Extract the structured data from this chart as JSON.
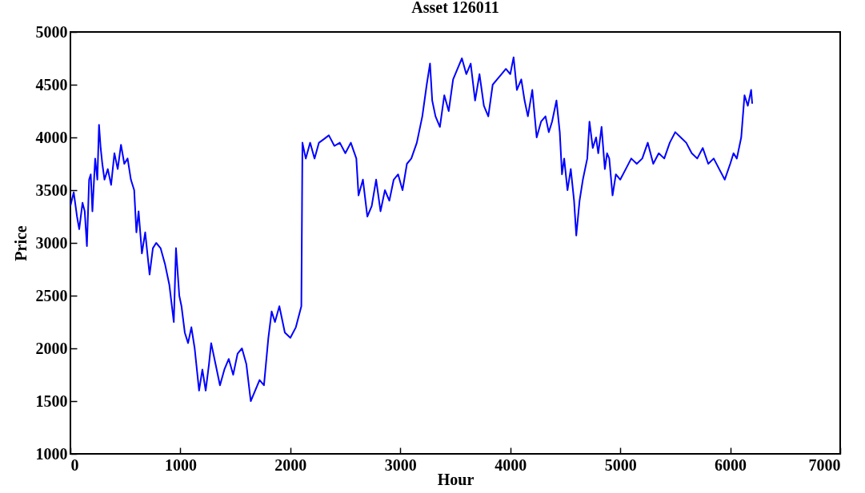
{
  "chart_data": {
    "type": "line",
    "title": "Asset 126011",
    "xlabel": "Hour",
    "ylabel": "Price",
    "xlim": [
      0,
      7000
    ],
    "xticks": [
      0,
      1000,
      2000,
      3000,
      4000,
      5000,
      6000,
      7000
    ],
    "ylim": [
      1000,
      5000
    ],
    "yticks": [
      1000,
      1500,
      2000,
      2500,
      3000,
      3500,
      4000,
      4500,
      5000
    ],
    "grid": false,
    "legend": false,
    "marker": "none",
    "line_style": "solid",
    "x": [
      0,
      30,
      60,
      80,
      110,
      130,
      150,
      170,
      185,
      200,
      225,
      245,
      260,
      275,
      290,
      310,
      340,
      370,
      400,
      430,
      460,
      490,
      520,
      550,
      580,
      600,
      620,
      650,
      680,
      720,
      750,
      780,
      820,
      860,
      900,
      940,
      960,
      990,
      1010,
      1040,
      1070,
      1100,
      1130,
      1170,
      1200,
      1230,
      1260,
      1280,
      1320,
      1360,
      1400,
      1440,
      1480,
      1520,
      1560,
      1600,
      1640,
      1680,
      1720,
      1760,
      1800,
      1830,
      1860,
      1900,
      1950,
      2000,
      2050,
      2100,
      2110,
      2140,
      2180,
      2220,
      2260,
      2300,
      2350,
      2400,
      2450,
      2500,
      2550,
      2600,
      2620,
      2660,
      2700,
      2740,
      2780,
      2820,
      2860,
      2900,
      2940,
      2980,
      3020,
      3060,
      3100,
      3150,
      3200,
      3240,
      3270,
      3290,
      3320,
      3360,
      3400,
      3440,
      3480,
      3520,
      3560,
      3600,
      3640,
      3680,
      3720,
      3760,
      3800,
      3840,
      3880,
      3920,
      3960,
      4000,
      4030,
      4060,
      4100,
      4130,
      4160,
      4200,
      4240,
      4280,
      4320,
      4350,
      4380,
      4420,
      4450,
      4470,
      4490,
      4520,
      4550,
      4580,
      4600,
      4630,
      4660,
      4700,
      4720,
      4750,
      4780,
      4800,
      4830,
      4860,
      4880,
      4900,
      4930,
      4960,
      5000,
      5050,
      5100,
      5150,
      5200,
      5250,
      5300,
      5350,
      5400,
      5450,
      5500,
      5550,
      5600,
      5650,
      5700,
      5750,
      5800,
      5850,
      5900,
      5950,
      6000,
      6030,
      6060,
      6100,
      6130,
      6160,
      6190,
      6200
    ],
    "series": [
      {
        "color": "#0000ff",
        "values": [
          3350,
          3480,
          3250,
          3130,
          3380,
          3300,
          2970,
          3600,
          3650,
          3300,
          3800,
          3600,
          4120,
          3900,
          3750,
          3600,
          3700,
          3550,
          3850,
          3700,
          3930,
          3750,
          3800,
          3600,
          3500,
          3100,
          3300,
          2900,
          3100,
          2700,
          2950,
          3000,
          2950,
          2800,
          2600,
          2250,
          2950,
          2500,
          2400,
          2150,
          2050,
          2200,
          2000,
          1600,
          1800,
          1600,
          1850,
          2050,
          1850,
          1650,
          1800,
          1900,
          1750,
          1950,
          2000,
          1850,
          1500,
          1600,
          1700,
          1650,
          2100,
          2350,
          2250,
          2400,
          2150,
          2100,
          2200,
          2400,
          3950,
          3800,
          3950,
          3800,
          3950,
          3980,
          4020,
          3920,
          3950,
          3850,
          3950,
          3800,
          3450,
          3600,
          3250,
          3350,
          3600,
          3300,
          3500,
          3400,
          3600,
          3650,
          3500,
          3750,
          3800,
          3950,
          4200,
          4500,
          4700,
          4350,
          4200,
          4100,
          4400,
          4250,
          4550,
          4650,
          4750,
          4600,
          4700,
          4350,
          4600,
          4300,
          4200,
          4500,
          4550,
          4600,
          4650,
          4600,
          4760,
          4450,
          4550,
          4350,
          4200,
          4450,
          4000,
          4150,
          4200,
          4050,
          4150,
          4350,
          4050,
          3650,
          3800,
          3500,
          3700,
          3400,
          3070,
          3400,
          3600,
          3800,
          4150,
          3900,
          4000,
          3850,
          4100,
          3700,
          3850,
          3800,
          3450,
          3650,
          3600,
          3700,
          3800,
          3750,
          3800,
          3950,
          3750,
          3850,
          3800,
          3950,
          4050,
          4000,
          3950,
          3850,
          3800,
          3900,
          3750,
          3800,
          3700,
          3600,
          3750,
          3850,
          3800,
          4000,
          4400,
          4300,
          4450,
          4320
        ]
      }
    ]
  }
}
